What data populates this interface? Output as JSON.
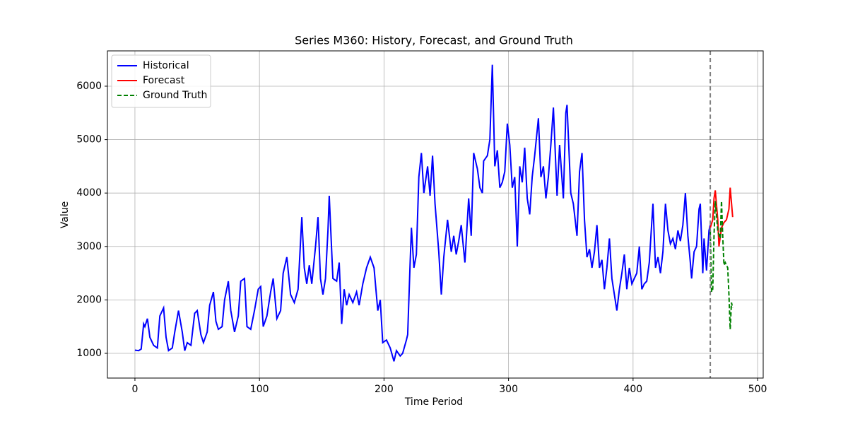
{
  "chart_data": {
    "type": "line",
    "title": "Series M360: History, Forecast, and Ground Truth",
    "x_label": "Time Period",
    "y_label": "Value",
    "xlim": [
      -22.1,
      504.5
    ],
    "ylim": [
      537,
      6661
    ],
    "xticks": [
      0,
      100,
      200,
      300,
      400,
      500
    ],
    "yticks": [
      1000,
      2000,
      3000,
      4000,
      5000,
      6000
    ],
    "grid": true,
    "legend": "upper left",
    "vline": {
      "x": 462,
      "color": "#808080"
    },
    "series": [
      {
        "name": "Historical",
        "color": "#0000ff",
        "linestyle": "solid",
        "x": [
          0,
          3,
          5,
          7,
          8,
          10,
          12,
          15,
          18,
          20,
          23,
          25,
          27,
          30,
          32,
          35,
          38,
          40,
          42,
          45,
          48,
          50,
          53,
          55,
          58,
          60,
          63,
          65,
          67,
          70,
          72,
          75,
          77,
          80,
          83,
          85,
          88,
          90,
          93,
          96,
          99,
          101,
          103,
          106,
          109,
          111,
          114,
          117,
          119,
          122,
          125,
          128,
          131,
          134,
          136,
          138,
          140,
          142,
          145,
          147,
          149,
          151,
          153,
          155,
          156,
          159,
          162,
          164,
          166,
          168,
          170,
          172,
          175,
          178,
          180,
          183,
          186,
          189,
          192,
          195,
          197,
          199,
          202,
          205,
          208,
          210,
          213,
          215,
          218,
          219,
          221,
          222,
          224,
          226,
          228,
          230,
          232,
          235,
          237,
          239,
          241,
          244,
          246,
          248,
          251,
          254,
          256,
          258,
          260,
          262,
          265,
          268,
          270,
          272,
          275,
          277,
          279,
          280,
          283,
          285,
          287,
          289,
          291,
          293,
          295,
          297,
          299,
          301,
          303,
          305,
          307,
          309,
          311,
          313,
          315,
          317,
          319,
          321,
          324,
          326,
          328,
          330,
          332,
          334,
          336,
          339,
          341,
          344,
          346,
          347,
          350,
          352,
          355,
          357,
          359,
          361,
          363,
          365,
          367,
          369,
          371,
          373,
          375,
          377,
          379,
          381,
          383,
          385,
          387,
          389,
          391,
          393,
          395,
          397,
          399,
          401,
          403,
          405,
          407,
          409,
          411,
          413,
          415,
          416,
          418,
          420,
          422,
          424,
          426,
          428,
          430,
          432,
          434,
          436,
          438,
          440,
          442,
          444,
          446,
          447,
          449,
          451,
          453,
          454,
          456,
          457,
          459,
          461,
          462
        ],
        "values": [
          1060,
          1050,
          1080,
          1550,
          1500,
          1650,
          1300,
          1150,
          1100,
          1700,
          1850,
          1300,
          1050,
          1100,
          1400,
          1800,
          1400,
          1050,
          1200,
          1150,
          1750,
          1800,
          1350,
          1200,
          1400,
          1900,
          2150,
          1600,
          1450,
          1500,
          2000,
          2350,
          1800,
          1400,
          1700,
          2350,
          2400,
          1500,
          1450,
          1800,
          2200,
          2250,
          1500,
          1700,
          2150,
          2400,
          1650,
          1800,
          2500,
          2800,
          2100,
          1950,
          2200,
          3550,
          2600,
          2300,
          2650,
          2300,
          3000,
          3550,
          2400,
          2100,
          2400,
          3300,
          3950,
          2400,
          2350,
          2700,
          1550,
          2200,
          1900,
          2100,
          1950,
          2150,
          1900,
          2300,
          2600,
          2800,
          2600,
          1800,
          2000,
          1200,
          1250,
          1100,
          850,
          1050,
          950,
          1000,
          1250,
          1350,
          2700,
          3350,
          2600,
          2850,
          4300,
          4750,
          4000,
          4500,
          3950,
          4700,
          3800,
          2900,
          2100,
          2800,
          3500,
          2900,
          3200,
          2850,
          3100,
          3400,
          2700,
          3900,
          3200,
          4750,
          4450,
          4100,
          4000,
          4600,
          4700,
          5000,
          6400,
          4500,
          4800,
          4100,
          4200,
          4400,
          5300,
          4900,
          4100,
          4300,
          3000,
          4500,
          4200,
          4850,
          3900,
          3600,
          4300,
          4700,
          5400,
          4300,
          4500,
          3900,
          4300,
          4900,
          5600,
          3950,
          4900,
          3900,
          5500,
          5650,
          4000,
          3800,
          3200,
          4400,
          4750,
          3500,
          2800,
          2950,
          2600,
          2900,
          3400,
          2600,
          2750,
          2200,
          2600,
          3150,
          2400,
          2100,
          1800,
          2200,
          2500,
          2850,
          2200,
          2600,
          2300,
          2400,
          2500,
          3000,
          2200,
          2300,
          2350,
          2700,
          3450,
          3800,
          2600,
          2800,
          2500,
          2900,
          3800,
          3300,
          3050,
          3150,
          2950,
          3300,
          3100,
          3400,
          4000,
          3200,
          2700,
          2400,
          2900,
          3000,
          3700,
          3800,
          2500,
          3150,
          2550,
          3300,
          3400
        ]
      },
      {
        "name": "Forecast",
        "color": "#ff0000",
        "linestyle": "solid",
        "x": [
          462,
          464,
          465,
          466,
          468,
          469,
          471,
          473,
          475,
          477,
          478,
          480
        ],
        "values": [
          3350,
          3500,
          3900,
          4050,
          3500,
          3000,
          3350,
          3450,
          3500,
          3700,
          4100,
          3550
        ]
      },
      {
        "name": "Ground Truth",
        "color": "#008000",
        "linestyle": "dashed",
        "x": [
          462,
          463,
          464,
          465,
          466,
          468,
          470,
          471,
          472,
          473,
          474,
          476,
          477,
          478,
          479,
          480
        ],
        "values": [
          3300,
          2150,
          2200,
          3200,
          3850,
          3300,
          3150,
          3850,
          3200,
          2650,
          2700,
          2600,
          2100,
          1450,
          1950,
          1850
        ]
      }
    ]
  }
}
